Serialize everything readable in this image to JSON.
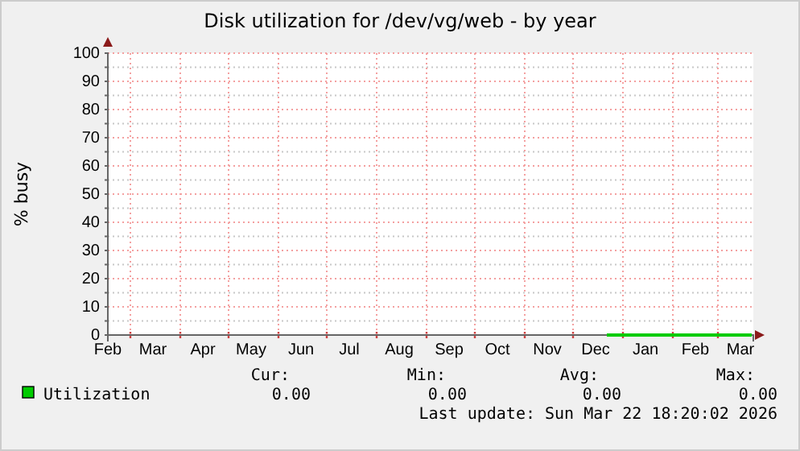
{
  "chart_data": {
    "type": "line",
    "title": "Disk utilization for /dev/vg/web - by year",
    "ylabel": "% busy",
    "xlim": [
      "2025-02-15",
      "2026-03-23"
    ],
    "xticks": [
      {
        "value": "2025-02-15",
        "label": "Feb"
      },
      {
        "value": "2025-03-15",
        "label": "Mar"
      },
      {
        "value": "2025-04-15",
        "label": "Apr"
      },
      {
        "value": "2025-05-15",
        "label": "May"
      },
      {
        "value": "2025-06-15",
        "label": "Jun"
      },
      {
        "value": "2025-07-15",
        "label": "Jul"
      },
      {
        "value": "2025-08-15",
        "label": "Aug"
      },
      {
        "value": "2025-09-15",
        "label": "Sep"
      },
      {
        "value": "2025-10-15",
        "label": "Oct"
      },
      {
        "value": "2025-11-15",
        "label": "Nov"
      },
      {
        "value": "2025-12-15",
        "label": "Dec"
      },
      {
        "value": "2026-01-15",
        "label": "Jan"
      },
      {
        "value": "2026-02-15",
        "label": "Feb"
      },
      {
        "value": "2026-03-15",
        "label": "Mar"
      }
    ],
    "ylim": [
      0,
      100
    ],
    "yticks": [
      0,
      {
        "value": 5,
        "label": null
      },
      10,
      {
        "value": 15,
        "label": null
      },
      20,
      {
        "value": 25,
        "label": null
      },
      30,
      {
        "value": 35,
        "label": null
      },
      40,
      {
        "value": 45,
        "label": null
      },
      50,
      {
        "value": 55,
        "label": null
      },
      60,
      {
        "value": 65,
        "label": null
      },
      70,
      {
        "value": 75,
        "label": null
      },
      80,
      {
        "value": 85,
        "label": null
      },
      90,
      {
        "value": 95,
        "label": null
      },
      100
    ],
    "grid": true,
    "legend": "bottom",
    "series": [
      {
        "name": "Utilization",
        "color": "#00cc00",
        "x": [
          "2025-12-22",
          "2026-01-15",
          "2026-02-15",
          "2026-03-22"
        ],
        "values": [
          0,
          0,
          0,
          0
        ]
      }
    ],
    "annotations": [
      "Cur:",
      "Min:",
      "Avg:",
      "Max:",
      "0.00",
      "0.00",
      "0.00",
      "0.00",
      "Last update: Sun Mar 22 18:20:02 2026"
    ]
  }
}
